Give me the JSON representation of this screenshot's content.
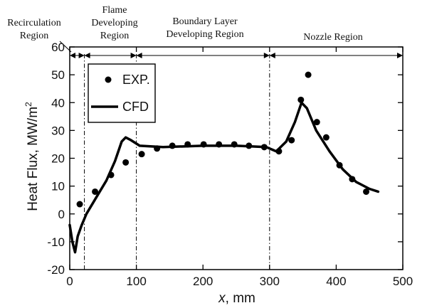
{
  "chart_data": {
    "type": "line",
    "xlabel_italic": "x",
    "xlabel_rest": ", mm",
    "ylabel": "Heat Flux, MW/m",
    "ylabel_sup": "2",
    "xlim": [
      0,
      500
    ],
    "ylim": [
      -20,
      60
    ],
    "x_ticks": [
      0,
      100,
      200,
      300,
      400,
      500
    ],
    "y_ticks": [
      -20,
      -10,
      0,
      10,
      20,
      30,
      40,
      50,
      60
    ],
    "grid": false,
    "legend_position": "top-left",
    "regions": [
      {
        "lines": [
          "Recirculation",
          "Region"
        ],
        "from": 0,
        "to": 22
      },
      {
        "lines": [
          "Flame",
          "Developing",
          "Region"
        ],
        "from": 22,
        "to": 100
      },
      {
        "lines": [
          "Boundary Layer",
          "Developing Region"
        ],
        "from": 100,
        "to": 300
      },
      {
        "lines": [
          "Nozzle Region"
        ],
        "from": 300,
        "to": 500
      }
    ],
    "region_boundaries": [
      22,
      100,
      300
    ],
    "series": [
      {
        "name": "EXP.",
        "kind": "scatter",
        "color": "#000000",
        "points": [
          [
            15,
            3.5
          ],
          [
            38,
            8
          ],
          [
            62,
            14
          ],
          [
            84,
            18.5
          ],
          [
            108,
            21.5
          ],
          [
            131,
            23.5
          ],
          [
            154,
            24.5
          ],
          [
            177,
            25
          ],
          [
            201,
            25
          ],
          [
            224,
            25
          ],
          [
            247,
            25
          ],
          [
            269,
            24.5
          ],
          [
            292,
            24
          ],
          [
            314,
            22.5
          ],
          [
            333,
            26.5
          ],
          [
            347,
            41
          ],
          [
            358,
            50
          ],
          [
            371,
            33
          ],
          [
            385,
            27.5
          ],
          [
            405,
            17.5
          ],
          [
            424,
            12.5
          ],
          [
            445,
            8
          ]
        ]
      },
      {
        "name": "CFD",
        "kind": "line",
        "color": "#000000",
        "points": [
          [
            0,
            -4
          ],
          [
            4,
            -10
          ],
          [
            8,
            -13.8
          ],
          [
            12,
            -8
          ],
          [
            18,
            -4
          ],
          [
            25,
            0
          ],
          [
            40,
            6
          ],
          [
            55,
            12
          ],
          [
            68,
            19
          ],
          [
            78,
            26
          ],
          [
            84,
            27.5
          ],
          [
            92,
            26.5
          ],
          [
            105,
            24.5
          ],
          [
            140,
            24
          ],
          [
            200,
            24.5
          ],
          [
            250,
            24.5
          ],
          [
            295,
            24
          ],
          [
            310,
            22.5
          ],
          [
            325,
            26
          ],
          [
            338,
            33
          ],
          [
            348,
            40
          ],
          [
            356,
            38
          ],
          [
            370,
            30
          ],
          [
            390,
            22.5
          ],
          [
            410,
            16
          ],
          [
            430,
            11.5
          ],
          [
            450,
            9
          ],
          [
            463,
            8
          ]
        ]
      }
    ]
  }
}
